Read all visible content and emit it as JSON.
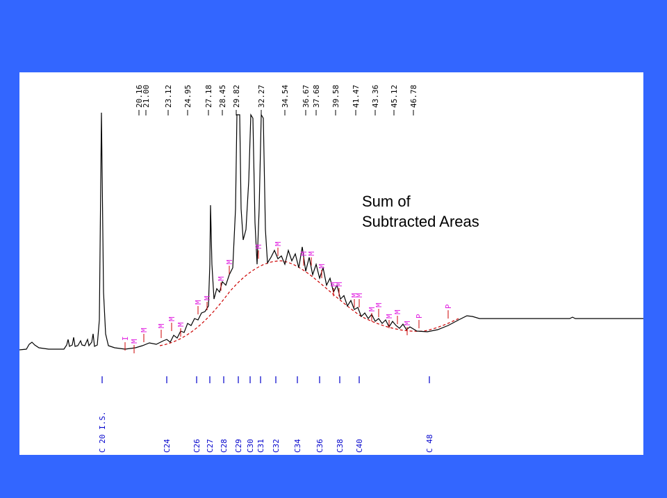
{
  "retention_times": [
    "20.16",
    "21.00",
    "23.12",
    "24.95",
    "27.18",
    "28.45",
    "29.82",
    "32.27",
    "34.54",
    "36.67",
    "37.68",
    "39.58",
    "41.47",
    "43.36",
    "45.12",
    "46.78"
  ],
  "carbon_labels": [
    "C 20 I.S.",
    "C24",
    "C26",
    "C27",
    "C28",
    "C29",
    "C30",
    "C31",
    "C32",
    "C34",
    "C36",
    "C38",
    "C40",
    "C 48"
  ],
  "peak_marks": [
    "I",
    "M",
    "M",
    "M",
    "M",
    "M",
    "M",
    "M",
    "M",
    "M",
    "M",
    "M",
    "M",
    "M",
    "M",
    "M",
    "M",
    "M",
    "M",
    "M",
    "M",
    "M",
    "M",
    "M",
    "P",
    "P"
  ],
  "annotation": [
    "Sum of",
    "Subtracted Areas"
  ]
}
